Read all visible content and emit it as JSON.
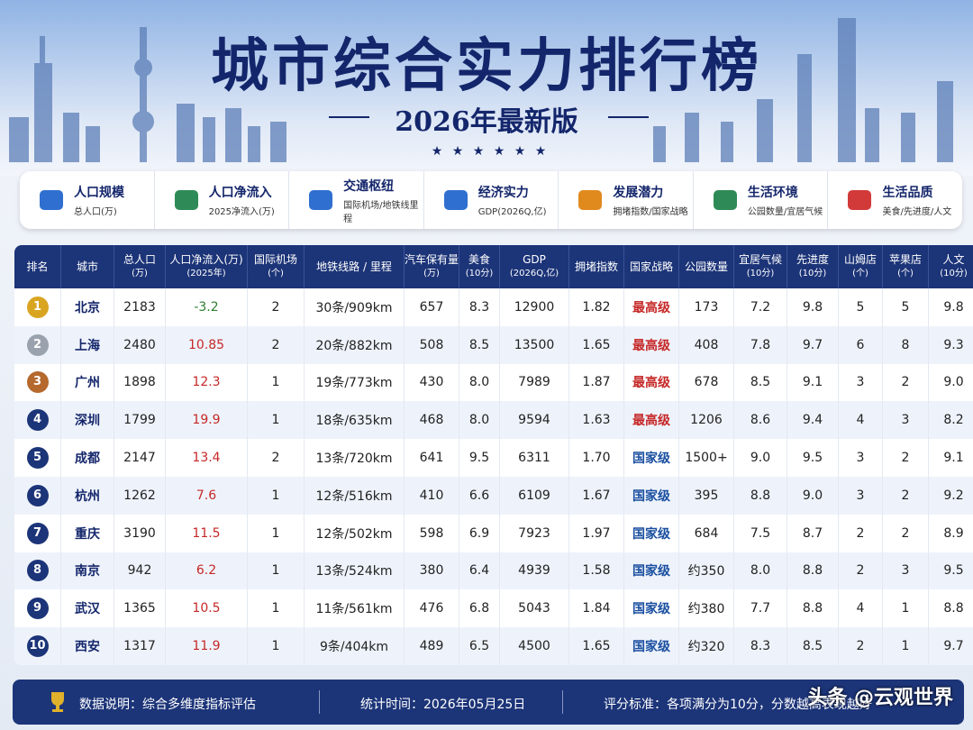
{
  "header": {
    "title": "城市综合实力排行榜",
    "subtitle": "2026年最新版"
  },
  "categories": [
    {
      "title": "人口规模",
      "sub": "总人口(万)"
    },
    {
      "title": "人口净流入",
      "sub": "2025净流入(万)"
    },
    {
      "title": "交通枢纽",
      "sub": "国际机场/地铁线里程"
    },
    {
      "title": "经济实力",
      "sub": "GDP(2026Q,亿)"
    },
    {
      "title": "发展潜力",
      "sub": "拥堵指数/国家战略"
    },
    {
      "title": "生活环境",
      "sub": "公园数量/宜居气候"
    },
    {
      "title": "生活品质",
      "sub": "美食/先进度/人文"
    }
  ],
  "table": {
    "columns": [
      {
        "label": "排名"
      },
      {
        "label": "城市"
      },
      {
        "label": "总人口",
        "sub": "(万)"
      },
      {
        "label": "人口净流入(万)",
        "sub": "(2025年)"
      },
      {
        "label": "国际机场",
        "sub": "(个)"
      },
      {
        "label": "地铁线路 / 里程"
      },
      {
        "label": "汽车保有量",
        "sub": "(万)"
      },
      {
        "label": "美食",
        "sub": "(10分)"
      },
      {
        "label": "GDP",
        "sub": "(2026Q,亿)"
      },
      {
        "label": "拥堵指数"
      },
      {
        "label": "国家战略"
      },
      {
        "label": "公园数量"
      },
      {
        "label": "宜居气候",
        "sub": "(10分)"
      },
      {
        "label": "先进度",
        "sub": "(10分)"
      },
      {
        "label": "山姆店",
        "sub": "(个)"
      },
      {
        "label": "苹果店",
        "sub": "(个)"
      },
      {
        "label": "人文",
        "sub": "(10分)"
      }
    ],
    "rows": [
      [
        "1",
        "北京",
        "2183",
        {
          "text": "-3.2",
          "color": "#2e7d32"
        },
        "2",
        "30条/909km",
        "657",
        "8.3",
        "12900",
        "1.82",
        {
          "text": "最高级",
          "color": "#c62828"
        },
        "173",
        "7.2",
        "9.8",
        "5",
        "5",
        "9.8"
      ],
      [
        "2",
        "上海",
        "2480",
        {
          "text": "10.85",
          "color": "#c62828"
        },
        "2",
        "20条/882km",
        "508",
        "8.5",
        "13500",
        "1.65",
        {
          "text": "最高级",
          "color": "#c62828"
        },
        "408",
        "7.8",
        "9.7",
        "6",
        "8",
        "9.3"
      ],
      [
        "3",
        "广州",
        "1898",
        {
          "text": "12.3",
          "color": "#c62828"
        },
        "1",
        "19条/773km",
        "430",
        "8.0",
        "7989",
        "1.87",
        {
          "text": "最高级",
          "color": "#c62828"
        },
        "678",
        "8.5",
        "9.1",
        "3",
        "2",
        "9.0"
      ],
      [
        "4",
        "深圳",
        "1799",
        {
          "text": "19.9",
          "color": "#c62828"
        },
        "1",
        "18条/635km",
        "468",
        "8.0",
        "9594",
        "1.63",
        {
          "text": "最高级",
          "color": "#c62828"
        },
        "1206",
        "8.6",
        "9.4",
        "4",
        "3",
        "8.2"
      ],
      [
        "5",
        "成都",
        "2147",
        {
          "text": "13.4",
          "color": "#c62828"
        },
        "2",
        "13条/720km",
        "641",
        "9.5",
        "6311",
        "1.70",
        {
          "text": "国家级",
          "color": "#1a4fa0"
        },
        "1500+",
        "9.0",
        "9.5",
        "3",
        "2",
        "9.1"
      ],
      [
        "6",
        "杭州",
        "1262",
        {
          "text": "7.6",
          "color": "#c62828"
        },
        "1",
        "12条/516km",
        "410",
        "6.6",
        "6109",
        "1.67",
        {
          "text": "国家级",
          "color": "#1a4fa0"
        },
        "395",
        "8.8",
        "9.0",
        "3",
        "2",
        "9.2"
      ],
      [
        "7",
        "重庆",
        "3190",
        {
          "text": "11.5",
          "color": "#c62828"
        },
        "1",
        "12条/502km",
        "598",
        "6.9",
        "7923",
        "1.97",
        {
          "text": "国家级",
          "color": "#1a4fa0"
        },
        "684",
        "7.5",
        "8.7",
        "2",
        "2",
        "8.9"
      ],
      [
        "8",
        "南京",
        "942",
        {
          "text": "6.2",
          "color": "#c62828"
        },
        "1",
        "13条/524km",
        "380",
        "6.4",
        "4939",
        "1.58",
        {
          "text": "国家级",
          "color": "#1a4fa0"
        },
        "约350",
        "8.0",
        "8.8",
        "2",
        "3",
        "9.5"
      ],
      [
        "9",
        "武汉",
        "1365",
        {
          "text": "10.5",
          "color": "#c62828"
        },
        "1",
        "11条/561km",
        "476",
        "6.8",
        "5043",
        "1.84",
        {
          "text": "国家级",
          "color": "#1a4fa0"
        },
        "约380",
        "7.7",
        "8.8",
        "4",
        "1",
        "8.8"
      ],
      [
        "10",
        "西安",
        "1317",
        {
          "text": "11.9",
          "color": "#c62828"
        },
        "1",
        "9条/404km",
        "489",
        "6.5",
        "4500",
        "1.65",
        {
          "text": "国家级",
          "color": "#1a4fa0"
        },
        "约320",
        "8.3",
        "8.5",
        "2",
        "1",
        "9.7"
      ]
    ]
  },
  "footer": {
    "note": "数据说明：综合多维度指标评估",
    "time": "统计时间：2026年05月25日",
    "standard": "评分标准：各项满分为10分，分数越高表现越好"
  },
  "watermark": "头条 @云观世界"
}
